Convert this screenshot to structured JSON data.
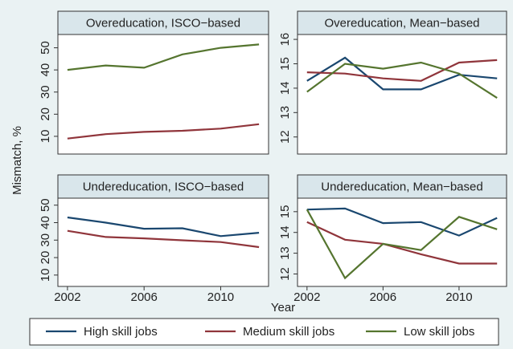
{
  "figure": {
    "ylabel": "Mismatch, %",
    "xlabel": "Year"
  },
  "chart_data": [
    {
      "type": "line",
      "title": "Overeducation, ISCO−based",
      "x": [
        2002,
        2004,
        2006,
        2008,
        2010,
        2012
      ],
      "xlim": [
        2001.5,
        2012.5
      ],
      "ylim": [
        2,
        56
      ],
      "yticks": [
        10,
        20,
        30,
        40,
        50
      ],
      "series": [
        {
          "name": "Medium skill jobs",
          "color": "#90353b",
          "values": [
            9,
            11,
            12,
            12.5,
            13.5,
            15.5
          ]
        },
        {
          "name": "Low skill jobs",
          "color": "#55752f",
          "values": [
            40,
            42,
            41,
            47,
            50,
            51.5
          ]
        }
      ]
    },
    {
      "type": "line",
      "title": "Overeducation, Mean−based",
      "x": [
        2002,
        2004,
        2006,
        2008,
        2010,
        2012
      ],
      "xlim": [
        2001.5,
        2012.5
      ],
      "ylim": [
        11.3,
        16.2
      ],
      "yticks": [
        12,
        13,
        14,
        15,
        16
      ],
      "series": [
        {
          "name": "High skill jobs",
          "color": "#1a476f",
          "values": [
            14.3,
            15.25,
            13.95,
            13.95,
            14.55,
            14.4
          ]
        },
        {
          "name": "Medium skill jobs",
          "color": "#90353b",
          "values": [
            14.65,
            14.6,
            14.4,
            14.3,
            15.05,
            15.15
          ]
        },
        {
          "name": "Low skill jobs",
          "color": "#55752f",
          "values": [
            13.85,
            15.0,
            14.8,
            15.05,
            14.6,
            13.6
          ]
        }
      ]
    },
    {
      "type": "line",
      "title": "Undereducation, ISCO−based",
      "x": [
        2002,
        2004,
        2006,
        2008,
        2010,
        2012
      ],
      "xlim": [
        2001.5,
        2012.5
      ],
      "xticks": [
        2002,
        2006,
        2010
      ],
      "ylim": [
        3.5,
        54
      ],
      "yticks": [
        10,
        20,
        30,
        40,
        50
      ],
      "series": [
        {
          "name": "High skill jobs",
          "color": "#1a476f",
          "values": [
            43,
            40,
            36.5,
            36.8,
            32.3,
            34.2
          ]
        },
        {
          "name": "Medium skill jobs",
          "color": "#90353b",
          "values": [
            35.3,
            31.8,
            31,
            29.9,
            28.9,
            26
          ]
        }
      ]
    },
    {
      "type": "line",
      "title": "Undereducation, Mean−based",
      "x": [
        2002,
        2004,
        2006,
        2008,
        2010,
        2012
      ],
      "xlim": [
        2001.5,
        2012.5
      ],
      "xticks": [
        2002,
        2006,
        2010
      ],
      "ylim": [
        11.4,
        15.65
      ],
      "yticks": [
        12,
        13,
        14,
        15
      ],
      "series": [
        {
          "name": "High skill jobs",
          "color": "#1a476f",
          "values": [
            15.1,
            15.15,
            14.45,
            14.5,
            13.85,
            14.7
          ]
        },
        {
          "name": "Medium skill jobs",
          "color": "#90353b",
          "values": [
            14.5,
            13.65,
            13.45,
            12.95,
            12.5,
            12.5
          ]
        },
        {
          "name": "Low skill jobs",
          "color": "#55752f",
          "values": [
            15.1,
            11.8,
            13.45,
            13.15,
            14.75,
            14.15
          ]
        }
      ]
    }
  ]
}
